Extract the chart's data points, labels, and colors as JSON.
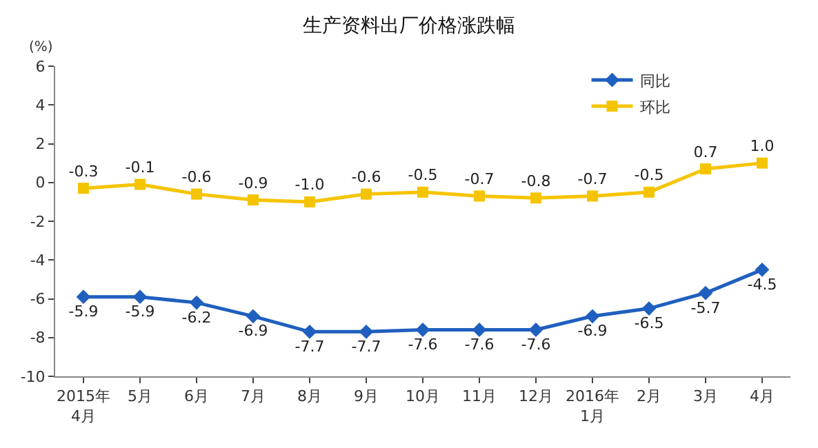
{
  "chart_data": {
    "type": "line",
    "title": "生产资料出厂价格涨跌幅",
    "ylabel": "(%)",
    "categories": [
      "2015年\n4月",
      "5月",
      "6月",
      "7月",
      "8月",
      "9月",
      "10月",
      "11月",
      "12月",
      "2016年\n1月",
      "2月",
      "3月",
      "4月"
    ],
    "series": [
      {
        "name": "同比",
        "color": "#1f5fbf",
        "marker": "diamond",
        "values": [
          -5.9,
          -5.9,
          -6.2,
          -6.9,
          -7.7,
          -7.7,
          -7.6,
          -7.6,
          -7.6,
          -6.9,
          -6.5,
          -5.7,
          -4.5
        ],
        "value_labels": [
          "-5.9",
          "-5.9",
          "-6.2",
          "-6.9",
          "-7.7",
          "-7.7",
          "-7.6",
          "-7.6",
          "-7.6",
          "-6.9",
          "-6.5",
          "-5.7",
          "-4.5"
        ]
      },
      {
        "name": "环比",
        "color": "#f5c400",
        "marker": "square",
        "values": [
          -0.3,
          -0.1,
          -0.6,
          -0.9,
          -1.0,
          -0.6,
          -0.5,
          -0.7,
          -0.8,
          -0.7,
          -0.5,
          0.7,
          1.0
        ],
        "value_labels": [
          "-0.3",
          "-0.1",
          "-0.6",
          "-0.9",
          "-1.0",
          "-0.6",
          "-0.5",
          "-0.7",
          "-0.8",
          "-0.7",
          "-0.5",
          "0.7",
          "1.0"
        ]
      }
    ],
    "ylim": [
      -10,
      6
    ],
    "yticks": [
      -10,
      -8,
      -6,
      -4,
      -2,
      0,
      2,
      4,
      6
    ],
    "grid": false,
    "legend": "top right"
  }
}
